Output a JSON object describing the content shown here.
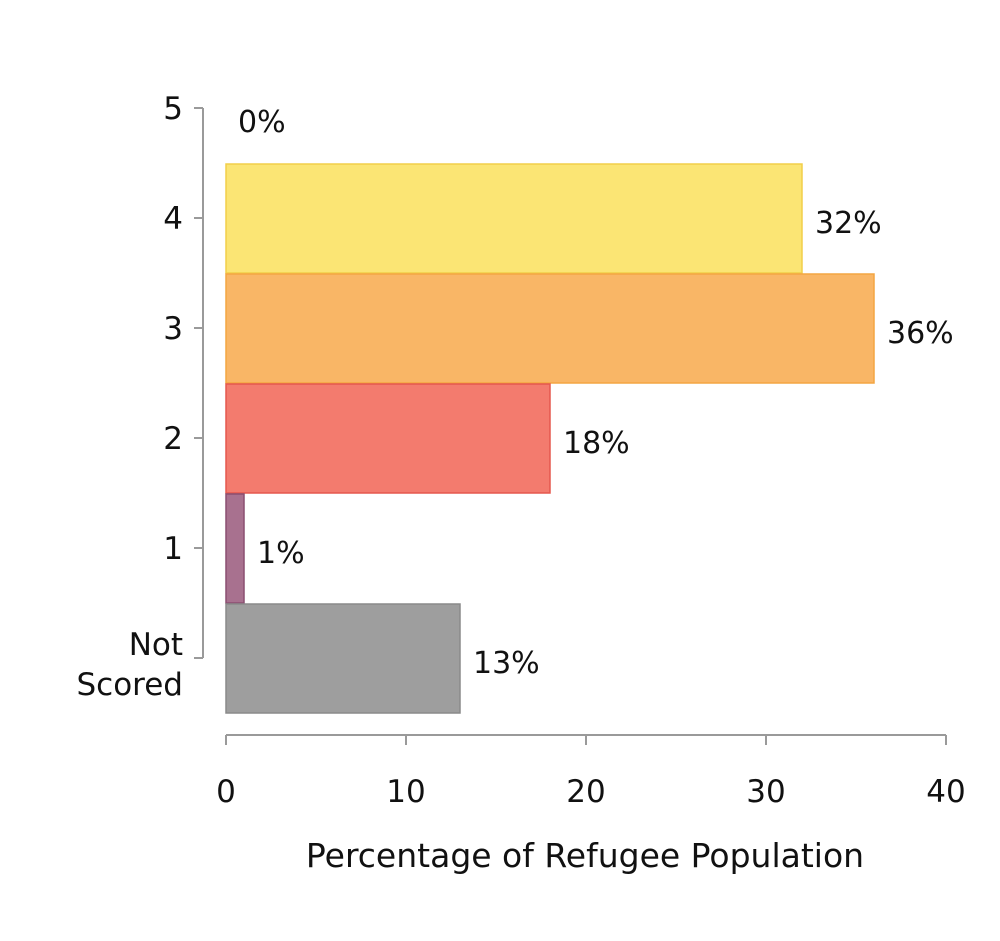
{
  "chart_data": {
    "type": "bar",
    "orientation": "horizontal",
    "title": "",
    "xlabel": "Percentage of Refugee Population",
    "ylabel": "",
    "xlim": [
      0,
      40
    ],
    "x_ticks": [
      0,
      10,
      20,
      30,
      40
    ],
    "grid": false,
    "legend": "none",
    "categories": [
      "5",
      "4",
      "3",
      "2",
      "1",
      "Not Scored"
    ],
    "values": [
      0,
      32,
      36,
      18,
      1,
      13
    ],
    "data_labels": [
      "0%",
      "32%",
      "36%",
      "18%",
      "1%",
      "13%"
    ],
    "colors": [
      "#fbe574",
      "#fbe574",
      "#f9b666",
      "#f37b6e",
      "#a8718f",
      "#9e9e9e"
    ],
    "edge_colors": [
      "#f2cf4a",
      "#f2cf4a",
      "#f4a542",
      "#e5584e",
      "#8a4f70",
      "#8a8a8a"
    ]
  }
}
